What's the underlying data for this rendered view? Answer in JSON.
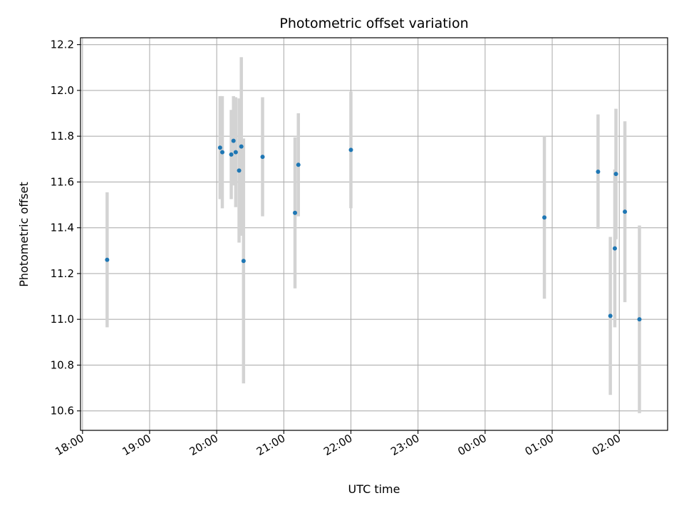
{
  "chart_data": {
    "type": "scatter",
    "title": "Photometric offset variation",
    "xlabel": "UTC time",
    "ylabel": "Photometric offset",
    "x_axis_kind": "time",
    "x_range_hours": [
      17.97,
      26.72
    ],
    "ylim": [
      10.515,
      12.23
    ],
    "y_ticks": [
      10.6,
      10.8,
      11.0,
      11.2,
      11.4,
      11.6,
      11.8,
      12.0,
      12.2
    ],
    "y_tick_labels": [
      "10.6",
      "10.8",
      "11.0",
      "11.2",
      "11.4",
      "11.6",
      "11.8",
      "12.0",
      "12.2"
    ],
    "x_ticks_hours": [
      18,
      19,
      20,
      21,
      22,
      23,
      24,
      25,
      26
    ],
    "x_tick_labels": [
      "18:00",
      "19:00",
      "20:00",
      "21:00",
      "22:00",
      "23:00",
      "00:00",
      "01:00",
      "02:00"
    ],
    "grid": true,
    "marker_color": "#1f77b4",
    "errorbar_color": "#d3d3d3",
    "series": [
      {
        "points": [
          {
            "t": "18:22",
            "y": 11.26,
            "yerr": 0.295
          },
          {
            "t": "20:03",
            "y": 11.75,
            "yerr": 0.225
          },
          {
            "t": "20:05",
            "y": 11.73,
            "yerr": 0.245
          },
          {
            "t": "20:13",
            "y": 11.72,
            "yerr": 0.195
          },
          {
            "t": "20:15",
            "y": 11.78,
            "yerr": 0.195
          },
          {
            "t": "20:17",
            "y": 11.73,
            "yerr": 0.24
          },
          {
            "t": "20:20",
            "y": 11.65,
            "yerr": 0.315
          },
          {
            "t": "20:22",
            "y": 11.755,
            "yerr": 0.39
          },
          {
            "t": "20:24",
            "y": 11.255,
            "yerr": 0.535
          },
          {
            "t": "20:41",
            "y": 11.71,
            "yerr": 0.26
          },
          {
            "t": "21:10",
            "y": 11.465,
            "yerr": 0.33
          },
          {
            "t": "21:13",
            "y": 11.675,
            "yerr": 0.225
          },
          {
            "t": "22:00",
            "y": 11.74,
            "yerr": 0.255
          },
          {
            "t": "00:53",
            "y": 11.445,
            "yerr": 0.355
          },
          {
            "t": "01:41",
            "y": 11.645,
            "yerr": 0.25
          },
          {
            "t": "01:52",
            "y": 11.015,
            "yerr": 0.345
          },
          {
            "t": "01:56",
            "y": 11.31,
            "yerr": 0.345
          },
          {
            "t": "01:57",
            "y": 11.635,
            "yerr": 0.285
          },
          {
            "t": "02:05",
            "y": 11.47,
            "yerr": 0.395
          },
          {
            "t": "02:18",
            "y": 11.0,
            "yerr": 0.41
          }
        ]
      }
    ]
  }
}
